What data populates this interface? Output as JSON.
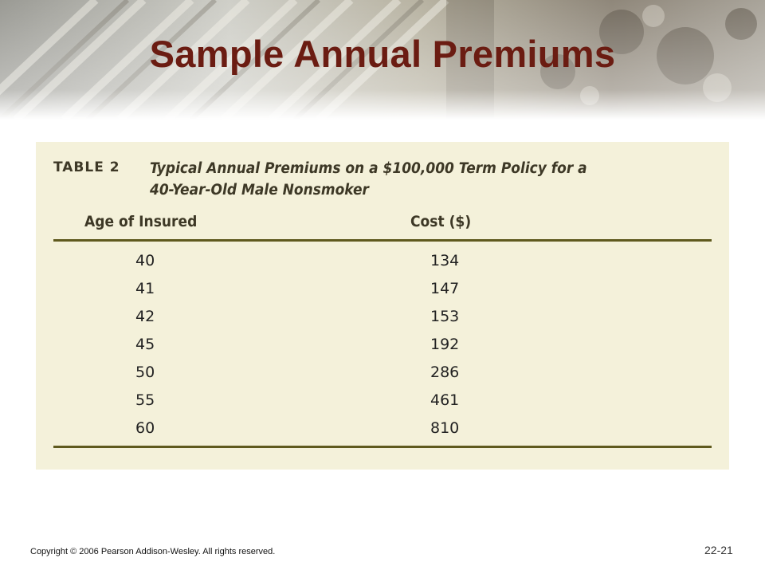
{
  "slide": {
    "title": "Sample Annual Premiums",
    "copyright": "Copyright © 2006 Pearson Addison-Wesley. All rights reserved.",
    "page_number": "22-21"
  },
  "table": {
    "label": "TABLE 2",
    "caption_line1": "Typical Annual Premiums on a $100,000 Term Policy for a",
    "caption_line2": "40-Year-Old Male Nonsmoker",
    "headers": [
      "Age of Insured",
      "Cost ($)"
    ],
    "rows": [
      [
        "40",
        "134"
      ],
      [
        "41",
        "147"
      ],
      [
        "42",
        "153"
      ],
      [
        "45",
        "192"
      ],
      [
        "50",
        "286"
      ],
      [
        "55",
        "461"
      ],
      [
        "60",
        "810"
      ]
    ]
  },
  "colors": {
    "title": "#6b1c12",
    "panel_background": "#f4f1da",
    "rule": "#5f5a1e"
  }
}
